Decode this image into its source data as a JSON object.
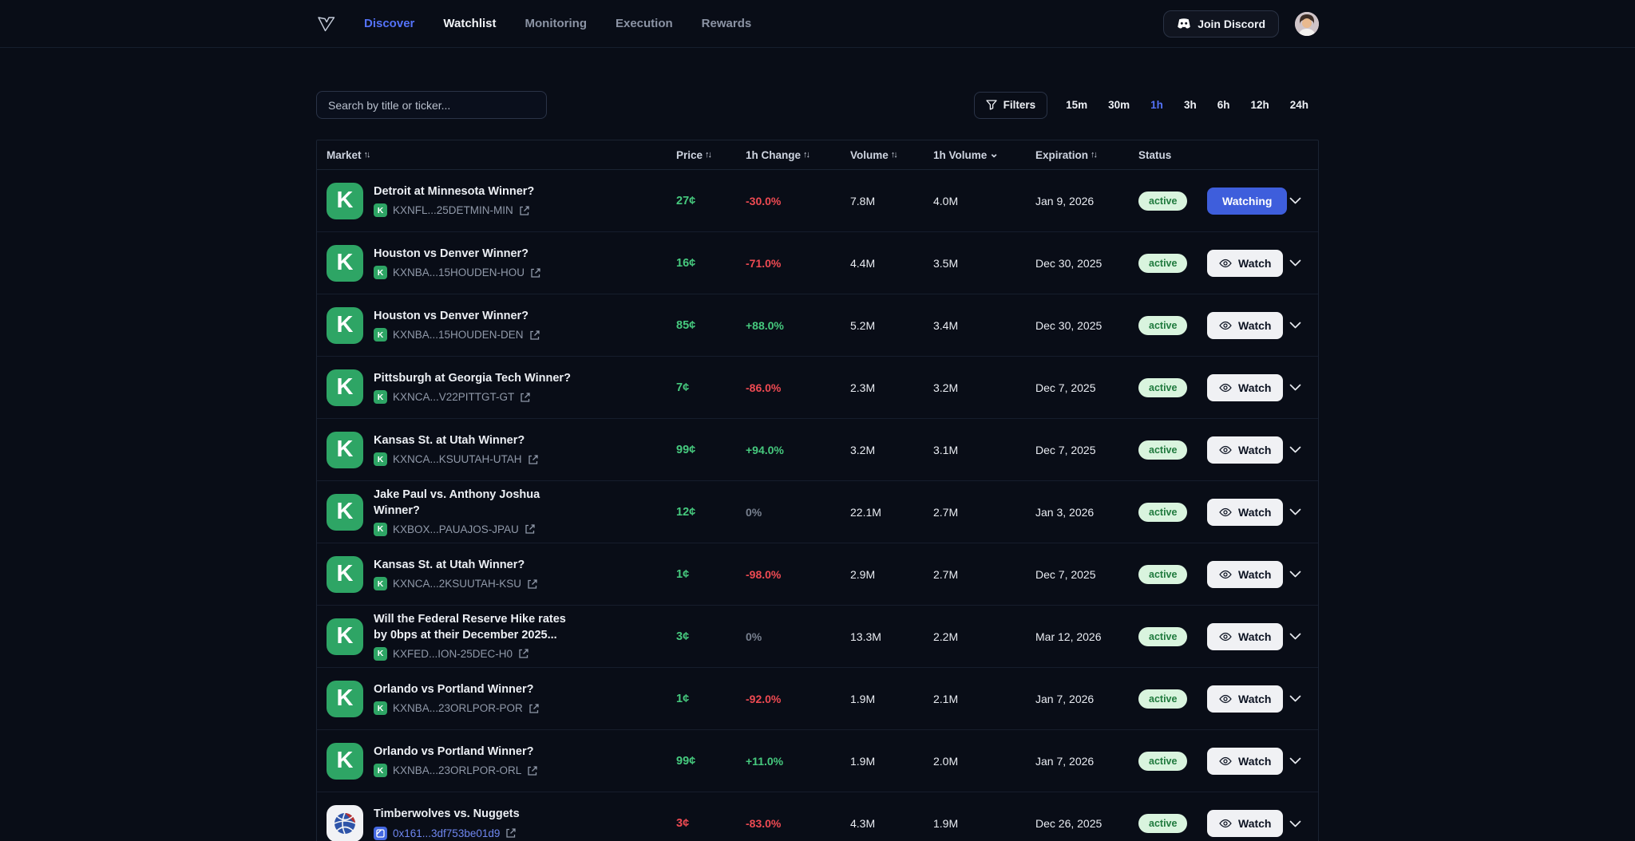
{
  "nav": {
    "brand": "v-logo",
    "links": [
      {
        "label": "Discover",
        "state": "blue"
      },
      {
        "label": "Watchlist",
        "state": "current"
      },
      {
        "label": "Monitoring",
        "state": "default"
      },
      {
        "label": "Execution",
        "state": "default"
      },
      {
        "label": "Rewards",
        "state": "default"
      }
    ],
    "join_discord_label": "Join Discord"
  },
  "controls": {
    "search_placeholder": "Search by title or ticker...",
    "filters_label": "Filters",
    "timeframes": [
      "15m",
      "30m",
      "1h",
      "3h",
      "6h",
      "12h",
      "24h"
    ],
    "active_timeframe": "1h"
  },
  "table": {
    "columns": [
      {
        "label": "Market",
        "sort": "both"
      },
      {
        "label": "Price",
        "sort": "both"
      },
      {
        "label": "1h Change",
        "sort": "both"
      },
      {
        "label": "Volume",
        "sort": "both"
      },
      {
        "label": "1h Volume",
        "sort": "desc"
      },
      {
        "label": "Expiration",
        "sort": "both"
      },
      {
        "label": "Status",
        "sort": "none"
      }
    ],
    "rows": [
      {
        "title": "Detroit at Minnesota Winner?",
        "source": "kalshi",
        "ticker": "KXNFL...25DETMIN-MIN",
        "ticker_style": "kalshi",
        "price": "27¢",
        "price_dir": "up",
        "change": "-30.0%",
        "change_dir": "down",
        "volume": "7.8M",
        "volume_1h": "4.0M",
        "expiration": "Jan 9, 2026",
        "status": "active",
        "action_label": "Watching",
        "watching": true
      },
      {
        "title": "Houston vs Denver Winner?",
        "source": "kalshi",
        "ticker": "KXNBA...15HOUDEN-HOU",
        "ticker_style": "kalshi",
        "price": "16¢",
        "price_dir": "up",
        "change": "-71.0%",
        "change_dir": "down",
        "volume": "4.4M",
        "volume_1h": "3.5M",
        "expiration": "Dec 30, 2025",
        "status": "active",
        "action_label": "Watch",
        "watching": false
      },
      {
        "title": "Houston vs Denver Winner?",
        "source": "kalshi",
        "ticker": "KXNBA...15HOUDEN-DEN",
        "ticker_style": "kalshi",
        "price": "85¢",
        "price_dir": "up",
        "change": "+88.0%",
        "change_dir": "up",
        "volume": "5.2M",
        "volume_1h": "3.4M",
        "expiration": "Dec 30, 2025",
        "status": "active",
        "action_label": "Watch",
        "watching": false
      },
      {
        "title": "Pittsburgh at Georgia Tech Winner?",
        "source": "kalshi",
        "ticker": "KXNCA...V22PITTGT-GT",
        "ticker_style": "kalshi",
        "price": "7¢",
        "price_dir": "up",
        "change": "-86.0%",
        "change_dir": "down",
        "volume": "2.3M",
        "volume_1h": "3.2M",
        "expiration": "Dec 7, 2025",
        "status": "active",
        "action_label": "Watch",
        "watching": false
      },
      {
        "title": "Kansas St. at Utah Winner?",
        "source": "kalshi",
        "ticker": "KXNCA...KSUUTAH-UTAH",
        "ticker_style": "kalshi",
        "price": "99¢",
        "price_dir": "up",
        "change": "+94.0%",
        "change_dir": "up",
        "volume": "3.2M",
        "volume_1h": "3.1M",
        "expiration": "Dec 7, 2025",
        "status": "active",
        "action_label": "Watch",
        "watching": false
      },
      {
        "title": "Jake Paul vs. Anthony Joshua Winner?",
        "source": "kalshi",
        "ticker": "KXBOX...PAUAJOS-JPAU",
        "ticker_style": "kalshi",
        "price": "12¢",
        "price_dir": "up",
        "change": "0%",
        "change_dir": "flat",
        "volume": "22.1M",
        "volume_1h": "2.7M",
        "expiration": "Jan 3, 2026",
        "status": "active",
        "action_label": "Watch",
        "watching": false
      },
      {
        "title": "Kansas St. at Utah Winner?",
        "source": "kalshi",
        "ticker": "KXNCA...2KSUUTAH-KSU",
        "ticker_style": "kalshi",
        "price": "1¢",
        "price_dir": "up",
        "change": "-98.0%",
        "change_dir": "down",
        "volume": "2.9M",
        "volume_1h": "2.7M",
        "expiration": "Dec 7, 2025",
        "status": "active",
        "action_label": "Watch",
        "watching": false
      },
      {
        "title": "Will the Federal Reserve Hike rates by 0bps at their December 2025...",
        "source": "kalshi",
        "ticker": "KXFED...ION-25DEC-H0",
        "ticker_style": "kalshi",
        "price": "3¢",
        "price_dir": "up",
        "change": "0%",
        "change_dir": "flat",
        "volume": "13.3M",
        "volume_1h": "2.2M",
        "expiration": "Mar 12, 2026",
        "status": "active",
        "action_label": "Watch",
        "watching": false
      },
      {
        "title": "Orlando vs Portland Winner?",
        "source": "kalshi",
        "ticker": "KXNBA...23ORLPOR-POR",
        "ticker_style": "kalshi",
        "price": "1¢",
        "price_dir": "up",
        "change": "-92.0%",
        "change_dir": "down",
        "volume": "1.9M",
        "volume_1h": "2.1M",
        "expiration": "Jan 7, 2026",
        "status": "active",
        "action_label": "Watch",
        "watching": false
      },
      {
        "title": "Orlando vs Portland Winner?",
        "source": "kalshi",
        "ticker": "KXNBA...23ORLPOR-ORL",
        "ticker_style": "kalshi",
        "price": "99¢",
        "price_dir": "up",
        "change": "+11.0%",
        "change_dir": "up",
        "volume": "1.9M",
        "volume_1h": "2.0M",
        "expiration": "Jan 7, 2026",
        "status": "active",
        "action_label": "Watch",
        "watching": false
      },
      {
        "title": "Timberwolves vs. Nuggets",
        "source": "sports",
        "ticker": "0x161...3df753be01d9",
        "ticker_style": "chain",
        "price": "3¢",
        "price_dir": "down",
        "change": "-83.0%",
        "change_dir": "down",
        "volume": "4.3M",
        "volume_1h": "1.9M",
        "expiration": "Dec 26, 2025",
        "status": "active",
        "action_label": "Watch",
        "watching": false
      }
    ]
  },
  "colors": {
    "positive": "#46c97e",
    "negative": "#ee4a52",
    "neutral": "#78808f",
    "accent_blue": "#5472f8",
    "watching_button": "#3e5edc",
    "kalshi_green": "#2ea565",
    "active_badge_bg": "#d9f4de",
    "active_badge_text": "#1f7a3d"
  }
}
